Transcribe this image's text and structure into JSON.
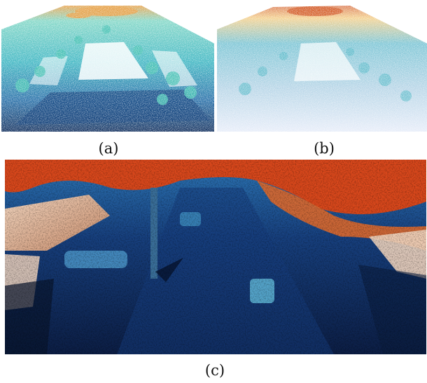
{
  "figure": {
    "captions": {
      "a": "(a)",
      "b": "(b)",
      "c": "(c)"
    },
    "panels": [
      {
        "id": "a",
        "subject": "point-cloud-street-scene-dense",
        "palette": [
          "#0b2a5a",
          "#1f6aa5",
          "#37b3c0",
          "#7fd6c5",
          "#e8a24a"
        ]
      },
      {
        "id": "b",
        "subject": "point-cloud-street-scene-sparse",
        "palette": [
          "#dfe7f7",
          "#9cc6de",
          "#4fb1c6",
          "#f0c26a",
          "#d0521d"
        ]
      },
      {
        "id": "c",
        "subject": "depth-rendered-street-view",
        "palette": [
          "#0c1e45",
          "#17407f",
          "#2d78b8",
          "#f2d6c0",
          "#d9481c"
        ]
      }
    ]
  }
}
